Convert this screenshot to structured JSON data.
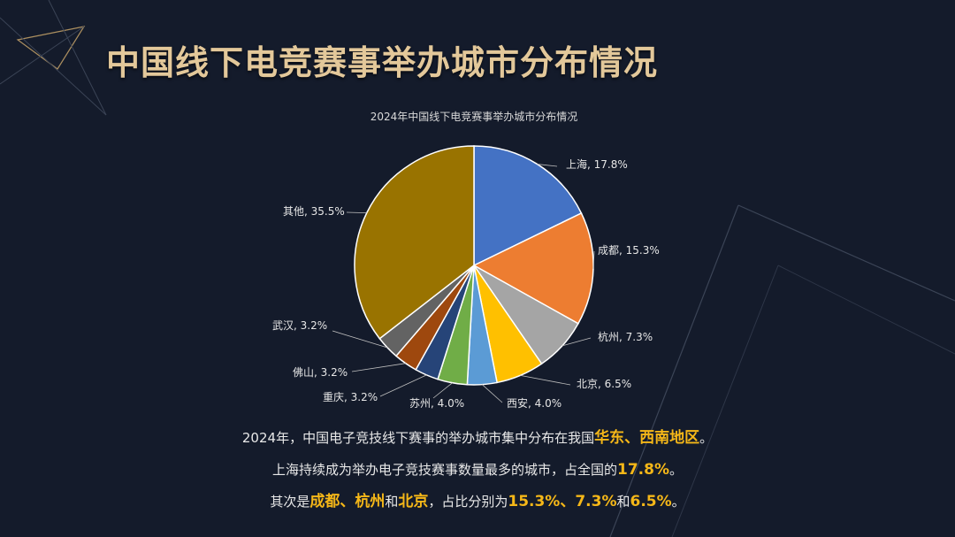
{
  "title": "中国线下电竞赛事举办城市分布情况",
  "colors": {
    "title": "#e3c89a",
    "background": "#141b2b",
    "highlight": "#f5b718"
  },
  "chart_data": {
    "type": "pie",
    "title": "2024年中国线下电竞赛事举办城市分布情况",
    "slices": [
      {
        "label": "上海",
        "value": 17.8,
        "text": "上海, 17.8%",
        "color": "#4472c4"
      },
      {
        "label": "成都",
        "value": 15.3,
        "text": "成都, 15.3%",
        "color": "#ed7d31"
      },
      {
        "label": "杭州",
        "value": 7.3,
        "text": "杭州, 7.3%",
        "color": "#a5a5a5"
      },
      {
        "label": "北京",
        "value": 6.5,
        "text": "北京, 6.5%",
        "color": "#ffc000"
      },
      {
        "label": "西安",
        "value": 4.0,
        "text": "西安, 4.0%",
        "color": "#5b9bd5"
      },
      {
        "label": "苏州",
        "value": 4.0,
        "text": "苏州, 4.0%",
        "color": "#70ad47"
      },
      {
        "label": "重庆",
        "value": 3.2,
        "text": "重庆, 3.2%",
        "color": "#264478"
      },
      {
        "label": "佛山",
        "value": 3.2,
        "text": "佛山, 3.2%",
        "color": "#9e480e"
      },
      {
        "label": "武汉",
        "value": 3.2,
        "text": "武汉, 3.2%",
        "color": "#636363"
      },
      {
        "label": "其他",
        "value": 35.5,
        "text": "其他, 35.5%",
        "color": "#997300"
      }
    ]
  },
  "summary": {
    "line1": {
      "a": "2024年，中国电子竞技线下赛事的举办城市集中分布在我国",
      "b": "华东、西南地区",
      "c": "。"
    },
    "line2": {
      "a": "上海持续成为举办电子竞技赛事数量最多的城市，占全国的",
      "b": "17.8%",
      "c": "。"
    },
    "line3": {
      "a": "其次是",
      "b": "成都、杭州",
      "c": "和",
      "d": "北京",
      "e": "，占比分别为",
      "f": "15.3%、7.3%",
      "g": "和",
      "h": "6.5%",
      "i": "。"
    }
  }
}
